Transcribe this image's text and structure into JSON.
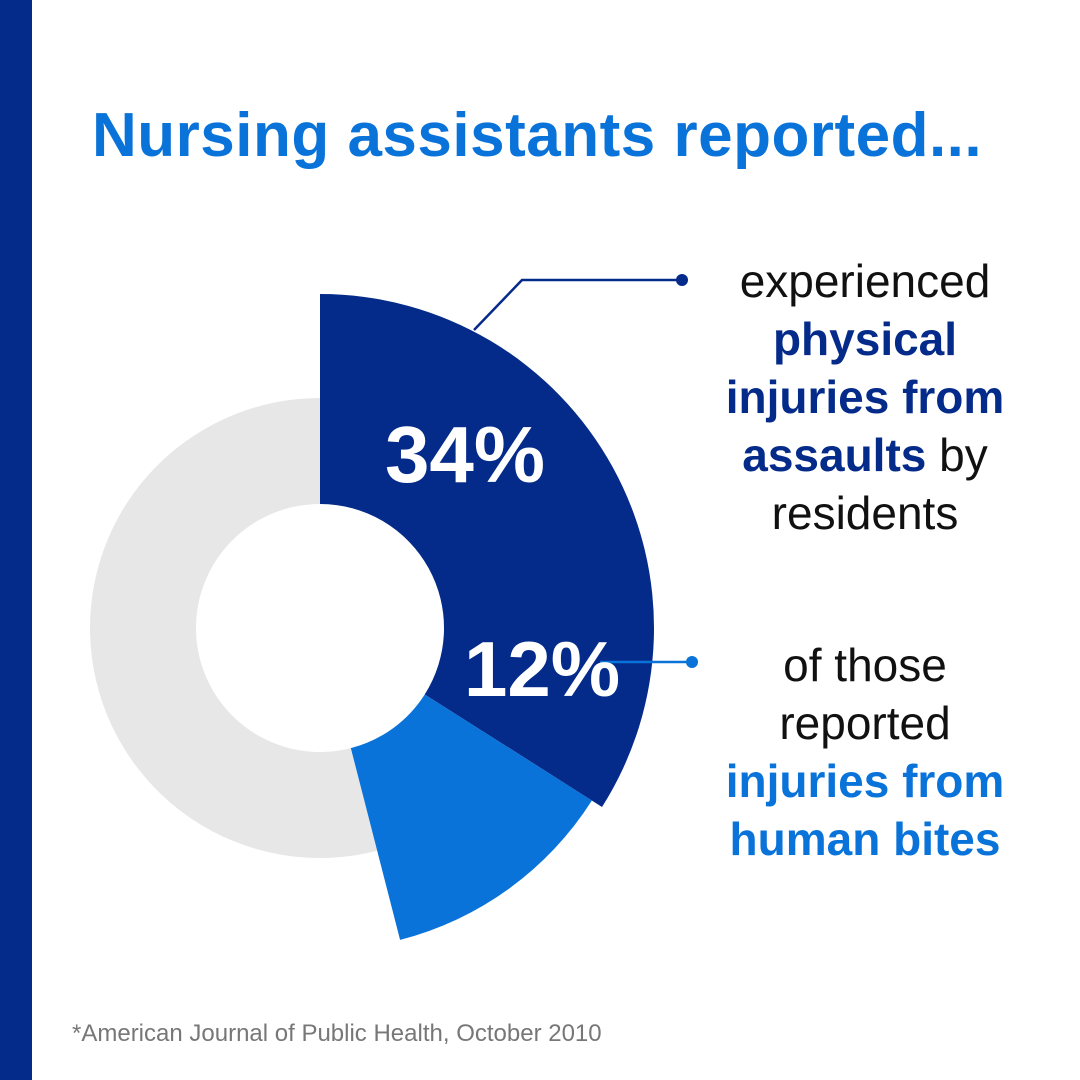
{
  "headline": "Nursing assistants reported...",
  "chart_data": {
    "type": "pie",
    "title": "",
    "slices": [
      {
        "label": "34%",
        "value": 34,
        "color": "#052b8a"
      },
      {
        "label": "12%",
        "value": 12,
        "color": "#0a73d9"
      },
      {
        "label": "",
        "value": 54,
        "color": "#e7e7e7"
      }
    ]
  },
  "annotations": [
    {
      "segments": [
        {
          "text": "experienced",
          "bold": false
        },
        {
          "text": "physical injuries from assaults",
          "bold": true
        },
        {
          "text": "by residents",
          "bold": false
        }
      ]
    },
    {
      "segments": [
        {
          "text": "of those reported",
          "bold": false
        },
        {
          "text": "injuries from human bites",
          "bold": true
        }
      ]
    }
  ],
  "footnote": "*American Journal of Public Health, October 2010",
  "colors": {
    "side_bar": "#052b8a",
    "accent_dark": "#052b8a",
    "accent_light": "#0a73d9",
    "remainder": "#e7e7e7"
  }
}
